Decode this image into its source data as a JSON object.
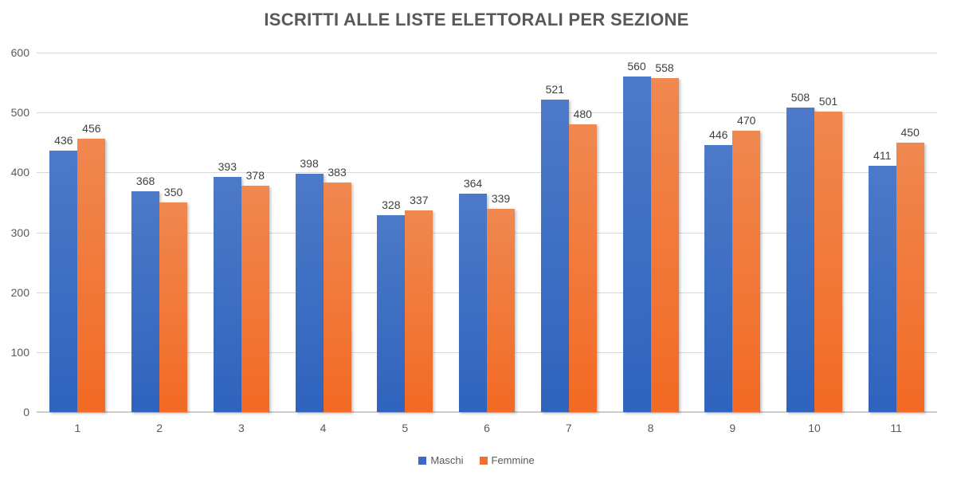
{
  "title": "ISCRITTI ALLE LISTE ELETTORALI PER SEZIONE",
  "colors": {
    "title_text": "#595959",
    "axis_text": "#595959",
    "value_label_text": "#404040",
    "gridline": "#d9d9d9",
    "axis_line": "#cdcccb",
    "background": "#ffffff"
  },
  "chart_data": {
    "type": "bar",
    "title": "ISCRITTI ALLE LISTE ELETTORALI PER SEZIONE",
    "xlabel": "",
    "ylabel": "",
    "categories": [
      "1",
      "2",
      "3",
      "4",
      "5",
      "6",
      "7",
      "8",
      "9",
      "10",
      "11"
    ],
    "series": [
      {
        "name": "Maschi",
        "legend_color": "#3a6bc4",
        "color_top": "#4d7ac8",
        "color_bottom": "#2f63bd",
        "values": [
          436,
          368,
          393,
          398,
          328,
          364,
          521,
          560,
          446,
          508,
          411
        ]
      },
      {
        "name": "Femmine",
        "legend_color": "#f1702c",
        "color_top": "#f08850",
        "color_bottom": "#f26a24",
        "values": [
          456,
          350,
          378,
          383,
          337,
          339,
          480,
          558,
          470,
          501,
          450
        ]
      }
    ],
    "ylim": [
      0,
      600
    ],
    "yticks": [
      0,
      100,
      200,
      300,
      400,
      500,
      600
    ],
    "grid": true,
    "data_labels": true,
    "legend_position": "bottom"
  }
}
